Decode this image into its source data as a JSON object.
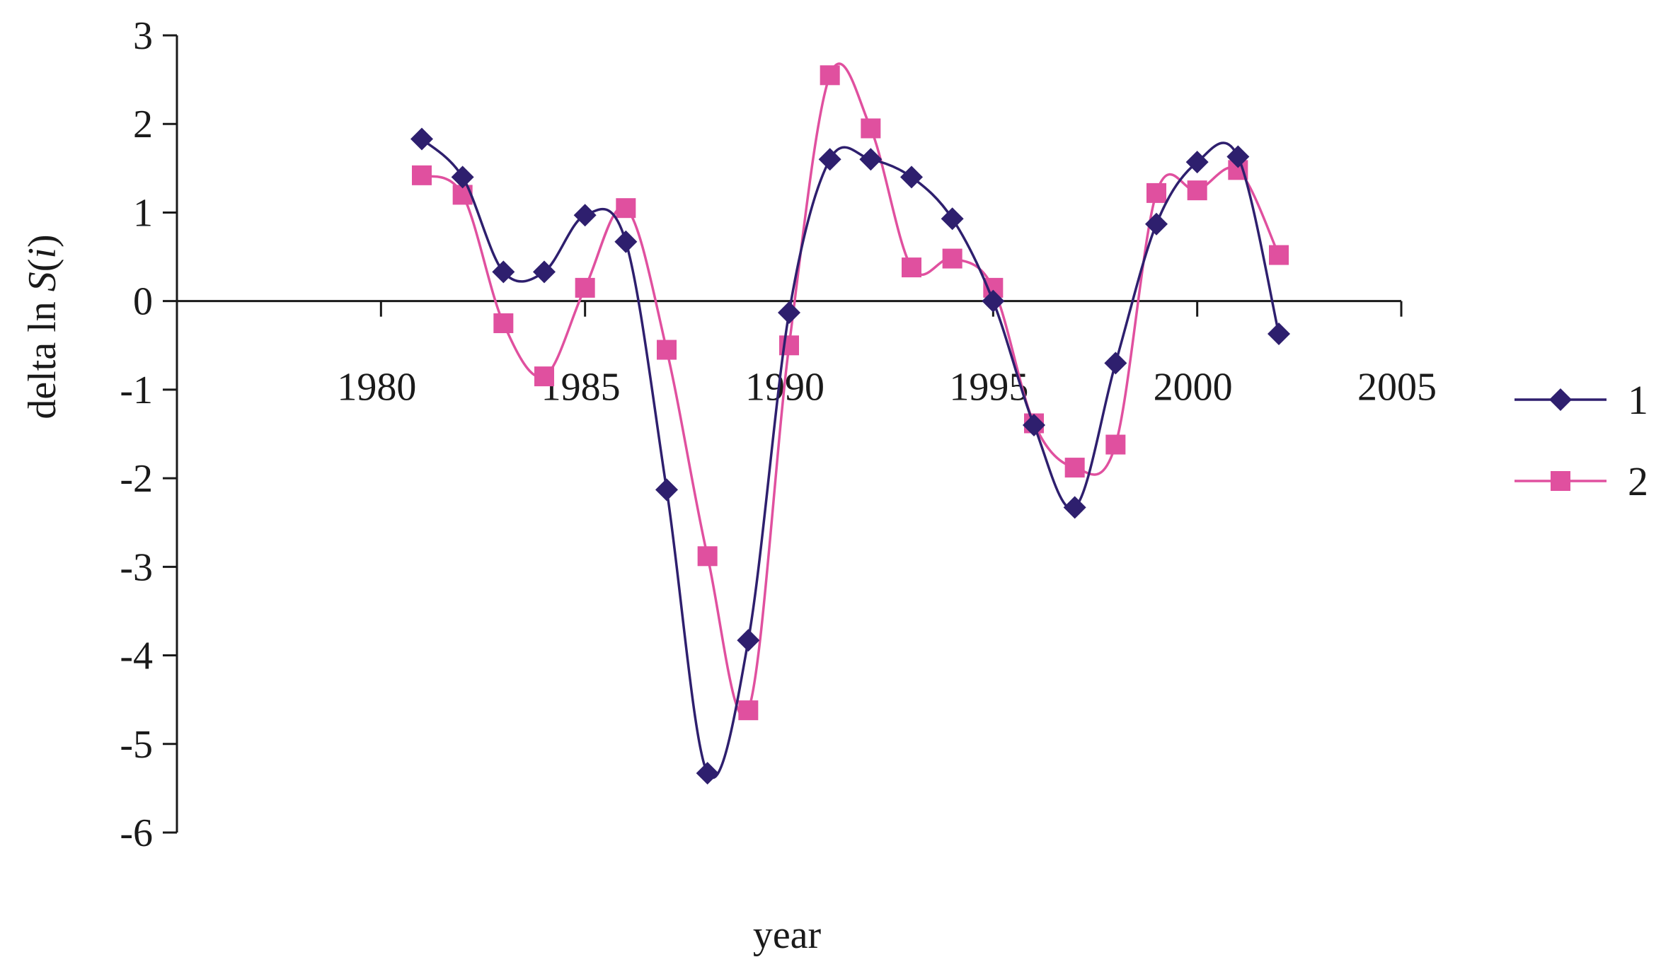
{
  "chart_data": {
    "type": "line",
    "title": "",
    "xlabel": "year",
    "ylabel": "delta ln S(i)",
    "ylabel_parts": {
      "prefix": "delta ln ",
      "symbol": "S",
      "open": "(",
      "index": "i",
      "close": ")"
    },
    "xlim": [
      1975,
      2005
    ],
    "ylim": [
      -6,
      3
    ],
    "x_ticks": [
      1980,
      1985,
      1990,
      1995,
      2000,
      2005
    ],
    "x_tick_labels": [
      "1980",
      "1985",
      "1990",
      "1995",
      "2000",
      "2005"
    ],
    "y_ticks": [
      3,
      2,
      1,
      0,
      -1,
      -2,
      -3,
      -4,
      -5,
      -6
    ],
    "y_tick_labels": [
      "3",
      "2",
      "1",
      "0",
      "-1",
      "-2",
      "-3",
      "-4",
      "-5",
      "-6"
    ],
    "grid": false,
    "smooth": true,
    "legend_position": "right",
    "x": [
      1981,
      1982,
      1983,
      1984,
      1985,
      1986,
      1987,
      1988,
      1989,
      1990,
      1991,
      1992,
      1993,
      1994,
      1995,
      1996,
      1997,
      1998,
      1999,
      2000,
      2001,
      2002
    ],
    "series": [
      {
        "name": "1",
        "marker": "diamond",
        "color": "#2e1f6e",
        "values": [
          1.83,
          1.4,
          0.33,
          0.33,
          0.97,
          0.67,
          -2.13,
          -5.33,
          -3.83,
          -0.13,
          1.6,
          1.6,
          1.4,
          0.93,
          0.0,
          -1.4,
          -2.33,
          -0.7,
          0.87,
          1.57,
          1.63,
          -0.37
        ]
      },
      {
        "name": "2",
        "marker": "square",
        "color": "#e0509f",
        "values": [
          1.42,
          1.2,
          -0.25,
          -0.85,
          0.15,
          1.05,
          -0.55,
          -2.88,
          -4.62,
          -0.5,
          2.55,
          1.95,
          0.38,
          0.48,
          0.15,
          -1.38,
          -1.88,
          -1.62,
          1.22,
          1.25,
          1.48,
          0.52
        ]
      }
    ]
  }
}
